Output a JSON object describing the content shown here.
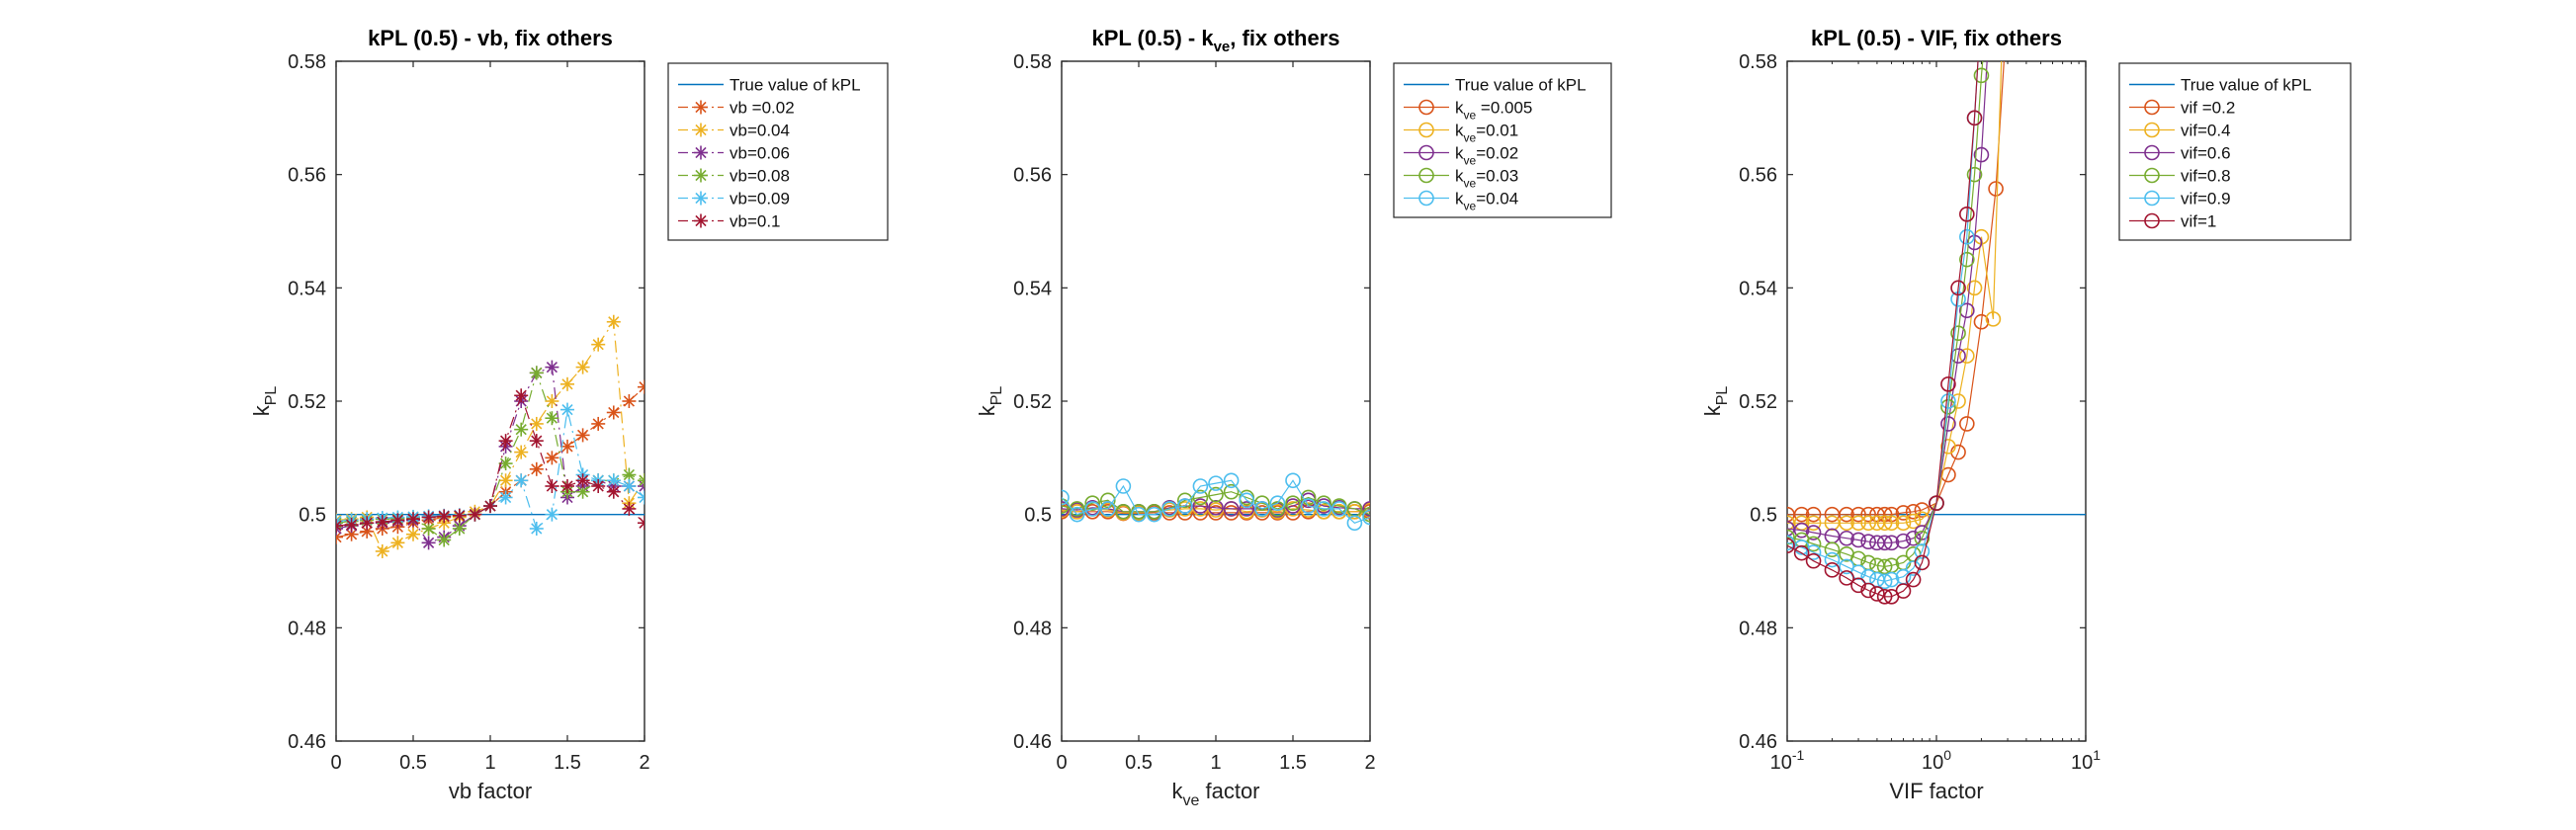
{
  "chart_data": [
    {
      "type": "line",
      "title": "kPL (0.5) - vb, fix others",
      "xlabel": "vb factor",
      "ylabel": "k",
      "ylabel_sub": "PL",
      "xscale": "linear",
      "xlim": [
        0,
        2
      ],
      "ylim": [
        0.46,
        0.58
      ],
      "xticks": [
        0,
        0.5,
        1,
        1.5,
        2
      ],
      "xtick_labels": [
        "0",
        "0.5",
        "1",
        "1.5",
        "2"
      ],
      "yticks": [
        0.46,
        0.48,
        0.5,
        0.52,
        0.54,
        0.56,
        0.58
      ],
      "ytick_labels": [
        "0.46",
        "0.48",
        "0.5",
        "0.52",
        "0.54",
        "0.56",
        "0.58"
      ],
      "grid": false,
      "legend_location": "outside-top-right",
      "reference": {
        "label": "True value of kPL",
        "value": 0.5,
        "color": "#0072BD"
      },
      "marker": "asterisk",
      "linestyle": "dash-dot",
      "series": [
        {
          "name": "vb =0.02",
          "sub": "",
          "color": "#D95319",
          "x": [
            0,
            0.1,
            0.2,
            0.3,
            0.4,
            0.5,
            0.6,
            0.7,
            0.8,
            0.9,
            1.0,
            1.1,
            1.2,
            1.3,
            1.4,
            1.5,
            1.6,
            1.7,
            1.8,
            1.9,
            2.0
          ],
          "y": [
            0.496,
            0.4965,
            0.497,
            0.4975,
            0.4978,
            0.4985,
            0.499,
            0.4995,
            0.4998,
            0.5,
            0.5015,
            0.504,
            0.506,
            0.508,
            0.51,
            0.512,
            0.514,
            0.516,
            0.518,
            0.52,
            0.5225
          ]
        },
        {
          "name": "vb=0.04",
          "sub": "",
          "color": "#EDB120",
          "x": [
            0,
            0.1,
            0.2,
            0.3,
            0.4,
            0.5,
            0.6,
            0.7,
            0.8,
            0.9,
            1.0,
            1.1,
            1.2,
            1.3,
            1.4,
            1.5,
            1.6,
            1.7,
            1.8,
            1.9,
            2.0
          ],
          "y": [
            0.499,
            0.4992,
            0.4995,
            0.4935,
            0.495,
            0.4965,
            0.4975,
            0.4985,
            0.4995,
            0.5005,
            0.5015,
            0.506,
            0.511,
            0.516,
            0.52,
            0.523,
            0.526,
            0.53,
            0.534,
            0.502,
            0.506
          ]
        },
        {
          "name": "vb=0.06",
          "sub": "",
          "color": "#7E2F8E",
          "x": [
            0,
            0.1,
            0.2,
            0.3,
            0.4,
            0.5,
            0.6,
            0.7,
            0.8,
            0.9,
            1.0,
            1.1,
            1.2,
            1.3,
            1.4,
            1.5,
            1.6,
            1.7,
            1.8,
            1.9,
            2.0
          ],
          "y": [
            0.4975,
            0.498,
            0.4985,
            0.4985,
            0.4988,
            0.499,
            0.495,
            0.496,
            0.498,
            0.5,
            0.5015,
            0.512,
            0.52,
            0.525,
            0.526,
            0.503,
            0.505,
            0.506,
            0.505,
            0.505,
            0.505
          ]
        },
        {
          "name": "vb=0.08",
          "sub": "",
          "color": "#77AC30",
          "x": [
            0,
            0.1,
            0.2,
            0.3,
            0.4,
            0.5,
            0.6,
            0.7,
            0.8,
            0.9,
            1.0,
            1.1,
            1.2,
            1.3,
            1.4,
            1.5,
            1.6,
            1.7,
            1.8,
            1.9,
            2.0
          ],
          "y": [
            0.4985,
            0.4988,
            0.499,
            0.4992,
            0.4993,
            0.4995,
            0.4975,
            0.4955,
            0.4975,
            0.5,
            0.5015,
            0.509,
            0.515,
            0.525,
            0.517,
            0.504,
            0.504,
            0.506,
            0.506,
            0.507,
            0.506
          ]
        },
        {
          "name": "vb=0.09",
          "sub": "",
          "color": "#4DBEEE",
          "x": [
            0,
            0.1,
            0.2,
            0.3,
            0.4,
            0.5,
            0.6,
            0.7,
            0.8,
            0.9,
            1.0,
            1.1,
            1.2,
            1.3,
            1.4,
            1.5,
            1.6,
            1.7,
            1.8,
            1.9,
            2.0
          ],
          "y": [
            0.4988,
            0.499,
            0.4992,
            0.4994,
            0.4995,
            0.4996,
            0.4997,
            0.4998,
            0.4999,
            0.5,
            0.5015,
            0.503,
            0.506,
            0.4975,
            0.5,
            0.5185,
            0.507,
            0.506,
            0.506,
            0.505,
            0.503
          ]
        },
        {
          "name": "vb=0.1",
          "sub": "",
          "color": "#A2142F",
          "x": [
            0,
            0.1,
            0.2,
            0.3,
            0.4,
            0.5,
            0.6,
            0.7,
            0.8,
            0.9,
            1.0,
            1.1,
            1.2,
            1.3,
            1.4,
            1.5,
            1.6,
            1.7,
            1.8,
            1.9,
            2.0
          ],
          "y": [
            0.498,
            0.4982,
            0.4985,
            0.4987,
            0.499,
            0.4992,
            0.4995,
            0.4997,
            0.4998,
            0.5,
            0.5015,
            0.513,
            0.521,
            0.513,
            0.505,
            0.505,
            0.506,
            0.505,
            0.504,
            0.501,
            0.4985
          ]
        }
      ]
    },
    {
      "type": "line",
      "title": "kPL (0.5) - k",
      "title_sub": "ve",
      "title_tail": ", fix others",
      "xlabel": "k",
      "xlabel_sub": "ve",
      "xlabel_tail": " factor",
      "ylabel": "k",
      "ylabel_sub": "PL",
      "xscale": "linear",
      "xlim": [
        0,
        2
      ],
      "ylim": [
        0.46,
        0.58
      ],
      "xticks": [
        0,
        0.5,
        1,
        1.5,
        2
      ],
      "xtick_labels": [
        "0",
        "0.5",
        "1",
        "1.5",
        "2"
      ],
      "yticks": [
        0.46,
        0.48,
        0.5,
        0.52,
        0.54,
        0.56,
        0.58
      ],
      "ytick_labels": [
        "0.46",
        "0.48",
        "0.5",
        "0.52",
        "0.54",
        "0.56",
        "0.58"
      ],
      "grid": false,
      "legend_location": "outside-top-right",
      "reference": {
        "label": "True value of kPL",
        "value": 0.5,
        "color": "#0072BD"
      },
      "marker": "circle",
      "linestyle": "solid",
      "series": [
        {
          "name": "k",
          "sub": "ve",
          "tail": " =0.005",
          "color": "#D95319",
          "x": [
            0,
            0.1,
            0.2,
            0.3,
            0.4,
            0.5,
            0.6,
            0.7,
            0.8,
            0.9,
            1.0,
            1.1,
            1.2,
            1.3,
            1.4,
            1.5,
            1.6,
            1.7,
            1.8,
            1.9,
            2.0
          ],
          "y": [
            0.5005,
            0.5005,
            0.5005,
            0.5005,
            0.5002,
            0.5002,
            0.5003,
            0.5003,
            0.5003,
            0.5003,
            0.5003,
            0.5003,
            0.5003,
            0.5003,
            0.5003,
            0.5003,
            0.5005,
            0.5005,
            0.5005,
            0.5005,
            0.5005
          ]
        },
        {
          "name": "k",
          "sub": "ve",
          "tail": "=0.01",
          "color": "#EDB120",
          "x": [
            0,
            0.1,
            0.2,
            0.3,
            0.4,
            0.5,
            0.6,
            0.7,
            0.8,
            0.9,
            1.0,
            1.1,
            1.2,
            1.3,
            1.4,
            1.5,
            1.6,
            1.7,
            1.8,
            1.9,
            2.0
          ],
          "y": [
            0.5008,
            0.5005,
            0.501,
            0.5008,
            0.5003,
            0.5003,
            0.5005,
            0.5008,
            0.501,
            0.501,
            0.5008,
            0.501,
            0.5005,
            0.5008,
            0.5005,
            0.501,
            0.5008,
            0.5005,
            0.5005,
            0.5005,
            0.5008
          ]
        },
        {
          "name": "k",
          "sub": "ve",
          "tail": "=0.02",
          "color": "#7E2F8E",
          "x": [
            0,
            0.1,
            0.2,
            0.3,
            0.4,
            0.5,
            0.6,
            0.7,
            0.8,
            0.9,
            1.0,
            1.1,
            1.2,
            1.3,
            1.4,
            1.5,
            1.6,
            1.7,
            1.8,
            1.9,
            2.0
          ],
          "y": [
            0.501,
            0.5008,
            0.5012,
            0.501,
            0.5005,
            0.5005,
            0.5005,
            0.5012,
            0.5015,
            0.5015,
            0.5012,
            0.501,
            0.501,
            0.501,
            0.5008,
            0.5015,
            0.5025,
            0.5015,
            0.5012,
            0.501,
            0.501
          ]
        },
        {
          "name": "k",
          "sub": "ve",
          "tail": "=0.03",
          "color": "#77AC30",
          "x": [
            0,
            0.1,
            0.2,
            0.3,
            0.4,
            0.5,
            0.6,
            0.7,
            0.8,
            0.9,
            1.0,
            1.1,
            1.2,
            1.3,
            1.4,
            1.5,
            1.6,
            1.7,
            1.8,
            1.9,
            2.0
          ],
          "y": [
            0.5015,
            0.501,
            0.502,
            0.5025,
            0.5005,
            0.5005,
            0.5005,
            0.501,
            0.5025,
            0.503,
            0.5035,
            0.504,
            0.503,
            0.502,
            0.501,
            0.502,
            0.503,
            0.502,
            0.5015,
            0.501,
            0.5
          ]
        },
        {
          "name": "k",
          "sub": "ve",
          "tail": "=0.04",
          "color": "#4DBEEE",
          "x": [
            0,
            0.1,
            0.2,
            0.3,
            0.4,
            0.5,
            0.6,
            0.7,
            0.8,
            0.9,
            1.0,
            1.1,
            1.2,
            1.3,
            1.4,
            1.5,
            1.6,
            1.7,
            1.8,
            1.9,
            2.0
          ],
          "y": [
            0.503,
            0.5,
            0.501,
            0.501,
            0.505,
            0.5,
            0.5,
            0.501,
            0.5015,
            0.505,
            0.5055,
            0.506,
            0.5025,
            0.501,
            0.502,
            0.506,
            0.5015,
            0.501,
            0.501,
            0.4985,
            0.4995
          ]
        }
      ]
    },
    {
      "type": "line",
      "title": "kPL (0.5) - VIF, fix others",
      "xlabel": "VIF factor",
      "ylabel": "k",
      "ylabel_sub": "PL",
      "xscale": "log",
      "xlim": [
        0.1,
        10
      ],
      "ylim": [
        0.46,
        0.58
      ],
      "xticks": [
        0.1,
        1,
        10
      ],
      "xtick_labels": [
        "10",
        "10",
        "10"
      ],
      "xtick_exponents": [
        "-1",
        "0",
        "1"
      ],
      "yticks": [
        0.46,
        0.48,
        0.5,
        0.52,
        0.54,
        0.56,
        0.58
      ],
      "ytick_labels": [
        "0.46",
        "0.48",
        "0.5",
        "0.52",
        "0.54",
        "0.56",
        "0.58"
      ],
      "grid": false,
      "legend_location": "outside-top-right",
      "reference": {
        "label": "True value of kPL",
        "value": 0.5,
        "color": "#0072BD"
      },
      "marker": "circle",
      "linestyle": "solid",
      "series": [
        {
          "name": "vif =0.2",
          "sub": "",
          "color": "#D95319",
          "x": [
            0.1,
            0.125,
            0.15,
            0.2,
            0.25,
            0.3,
            0.35,
            0.4,
            0.45,
            0.5,
            0.6,
            0.7,
            0.8,
            1.0,
            1.2,
            1.4,
            1.6,
            2.0,
            2.5,
            3.0
          ],
          "y": [
            0.5,
            0.5,
            0.5,
            0.5,
            0.5,
            0.5,
            0.5,
            0.5,
            0.5,
            0.5,
            0.5003,
            0.5005,
            0.5008,
            0.502,
            0.507,
            0.511,
            0.516,
            0.534,
            0.5575,
            0.59
          ]
        },
        {
          "name": "vif=0.4",
          "sub": "",
          "color": "#EDB120",
          "x": [
            0.1,
            0.125,
            0.15,
            0.2,
            0.25,
            0.3,
            0.35,
            0.4,
            0.45,
            0.5,
            0.6,
            0.7,
            0.8,
            1.0,
            1.2,
            1.4,
            1.6,
            1.8,
            2.0,
            2.4,
            2.8
          ],
          "y": [
            0.4985,
            0.4985,
            0.4985,
            0.4985,
            0.4985,
            0.4985,
            0.4985,
            0.4985,
            0.4985,
            0.4985,
            0.4985,
            0.4988,
            0.4992,
            0.502,
            0.512,
            0.52,
            0.528,
            0.54,
            0.549,
            0.5345,
            0.59
          ]
        },
        {
          "name": "vif=0.6",
          "sub": "",
          "color": "#7E2F8E",
          "x": [
            0.1,
            0.125,
            0.15,
            0.2,
            0.25,
            0.3,
            0.35,
            0.4,
            0.45,
            0.5,
            0.6,
            0.7,
            0.8,
            1.0,
            1.2,
            1.4,
            1.6,
            1.8,
            2.0,
            2.3
          ],
          "y": [
            0.4975,
            0.4972,
            0.4968,
            0.4962,
            0.4958,
            0.4955,
            0.4952,
            0.495,
            0.495,
            0.495,
            0.4953,
            0.4958,
            0.4968,
            0.502,
            0.516,
            0.528,
            0.536,
            0.548,
            0.5635,
            0.59
          ]
        },
        {
          "name": "vif=0.8",
          "sub": "",
          "color": "#77AC30",
          "x": [
            0.1,
            0.125,
            0.15,
            0.2,
            0.25,
            0.3,
            0.35,
            0.4,
            0.45,
            0.5,
            0.6,
            0.7,
            0.8,
            1.0,
            1.2,
            1.4,
            1.6,
            1.8,
            2.0,
            2.2
          ],
          "y": [
            0.496,
            0.4955,
            0.4948,
            0.4938,
            0.493,
            0.4922,
            0.4915,
            0.491,
            0.4908,
            0.491,
            0.4915,
            0.493,
            0.4958,
            0.502,
            0.519,
            0.532,
            0.545,
            0.56,
            0.5775,
            0.59
          ]
        },
        {
          "name": "vif=0.9",
          "sub": "",
          "color": "#4DBEEE",
          "x": [
            0.1,
            0.125,
            0.15,
            0.2,
            0.25,
            0.3,
            0.35,
            0.4,
            0.45,
            0.5,
            0.6,
            0.7,
            0.8,
            1.0,
            1.2,
            1.4,
            1.6,
            1.8,
            2.0
          ],
          "y": [
            0.495,
            0.4942,
            0.4933,
            0.492,
            0.4908,
            0.4898,
            0.489,
            0.4885,
            0.4882,
            0.4885,
            0.489,
            0.4905,
            0.4935,
            0.502,
            0.52,
            0.538,
            0.549,
            0.57,
            0.59
          ]
        },
        {
          "name": "vif=1",
          "sub": "",
          "color": "#A2142F",
          "x": [
            0.1,
            0.125,
            0.15,
            0.2,
            0.25,
            0.3,
            0.35,
            0.4,
            0.45,
            0.5,
            0.6,
            0.7,
            0.8,
            1.0,
            1.2,
            1.4,
            1.6,
            1.8,
            2.0
          ],
          "y": [
            0.4945,
            0.4932,
            0.4918,
            0.4902,
            0.4888,
            0.4875,
            0.4866,
            0.486,
            0.4855,
            0.4855,
            0.4865,
            0.4885,
            0.4915,
            0.502,
            0.523,
            0.54,
            0.553,
            0.57,
            0.59
          ]
        }
      ]
    }
  ]
}
